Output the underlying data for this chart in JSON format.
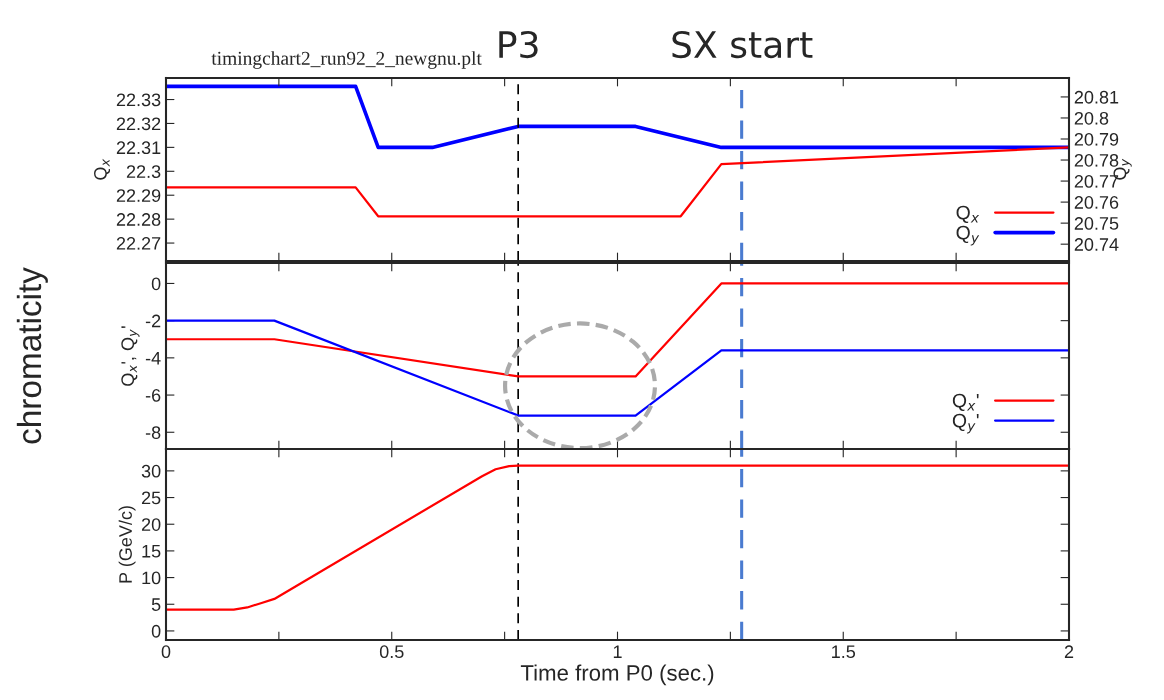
{
  "chart_data": [
    {
      "type": "line",
      "title": "timingchart2_run92_2_newgnu.plt",
      "ylabel": "Q$_{x}$",
      "y2label": "Q$_{y}$",
      "xlim": [
        0,
        2
      ],
      "xticks": [
        0,
        {
          "value": 0.25,
          "label": null
        },
        0.5,
        {
          "value": 0.75,
          "label": null
        },
        1,
        {
          "value": 1.25,
          "label": null
        },
        1.5,
        {
          "value": 1.75,
          "label": null
        },
        2
      ],
      "ylim": [
        22.2625,
        22.339
      ],
      "yticks": [
        22.27,
        22.28,
        22.29,
        22.3,
        22.31,
        22.32,
        22.33
      ],
      "y2lim": [
        20.732,
        20.819
      ],
      "y2ticks": [
        20.74,
        20.75,
        20.76,
        20.77,
        20.78,
        20.79,
        20.8,
        20.81
      ],
      "tick_labels": "y",
      "grid": false,
      "legend": "bottom right",
      "line_style": "solid",
      "marker": "none",
      "series": [
        {
          "name": "Q$_{x}$",
          "color": "#ff0000",
          "x": [
            0,
            0.42,
            0.47,
            1.14,
            1.23,
            2
          ],
          "values": [
            22.2933,
            22.2933,
            22.2812,
            22.2812,
            22.303,
            22.31
          ]
        },
        {
          "name": "Q$_{y}$",
          "color": "#0000ff",
          "axis": "y2",
          "x": [
            0,
            0.42,
            0.47,
            0.59,
            0.78,
            1.04,
            1.23,
            2
          ],
          "values": [
            20.815,
            20.815,
            20.786,
            20.786,
            20.796,
            20.796,
            20.786,
            20.786
          ]
        }
      ],
      "ref_lines": [
        {
          "axis": "x",
          "value": 0.78,
          "label": "P3",
          "color": "#000000",
          "line_style": "dashed"
        },
        {
          "axis": "x",
          "value": 1.275,
          "label": "SX start",
          "color": "#4a7bd0",
          "line_style": "dashed"
        }
      ]
    },
    {
      "type": "line",
      "ylabel": "Q$_{x}$', Q$_{y}$'",
      "annotations": [
        "chromaticity"
      ],
      "xlim": [
        0,
        2
      ],
      "xticks": [
        0,
        {
          "value": 0.25,
          "label": null
        },
        0.5,
        {
          "value": 0.75,
          "label": null
        },
        1,
        {
          "value": 1.25,
          "label": null
        },
        1.5,
        {
          "value": 1.75,
          "label": null
        },
        2
      ],
      "ylim": [
        -8.9,
        1.1
      ],
      "yticks": [
        -8,
        -6,
        -4,
        -2,
        0
      ],
      "tick_labels": "y",
      "grid": false,
      "legend": "bottom right",
      "line_style": "solid",
      "marker": "none",
      "series": [
        {
          "name": "Q$_{x}$'",
          "color": "#ff0000",
          "x": [
            0,
            0.24,
            0.78,
            1.04,
            1.23,
            2
          ],
          "values": [
            -3,
            -3,
            -5,
            -5,
            0,
            0
          ]
        },
        {
          "name": "Q$_{y}$'",
          "color": "#0000ff",
          "x": [
            0,
            0.24,
            0.78,
            1.04,
            1.23,
            2
          ],
          "values": [
            -2,
            -2,
            -7.1,
            -7.1,
            -3.6,
            -3.6
          ]
        }
      ],
      "ref_lines": [
        {
          "axis": "x",
          "value": 0.78,
          "color": "#000000",
          "line_style": "dashed"
        },
        {
          "axis": "x",
          "value": 1.275,
          "color": "#4a7bd0",
          "line_style": "dashed"
        }
      ]
    },
    {
      "type": "line",
      "xlabel": "Time from P0 (sec.)",
      "ylabel": "P (GeV/c)",
      "xlim": [
        0,
        2
      ],
      "xticks": [
        0,
        {
          "value": 0.25,
          "label": null
        },
        0.5,
        {
          "value": 0.75,
          "label": null
        },
        1,
        {
          "value": 1.25,
          "label": null
        },
        1.5,
        {
          "value": 1.75,
          "label": null
        },
        2
      ],
      "ylim": [
        -1.7,
        34.1
      ],
      "yticks": [
        0,
        5,
        10,
        15,
        20,
        25,
        30
      ],
      "grid": false,
      "line_style": "solid",
      "marker": "none",
      "series": [
        {
          "color": "#ff0000",
          "x": [
            0,
            0.15,
            0.18,
            0.21,
            0.24,
            0.7,
            0.73,
            0.76,
            0.78,
            2
          ],
          "values": [
            4,
            4,
            4.4,
            5.2,
            6,
            29,
            30.3,
            30.9,
            31,
            31
          ]
        }
      ],
      "ref_lines": [
        {
          "axis": "x",
          "value": 0.78,
          "color": "#000000",
          "line_style": "dashed"
        },
        {
          "axis": "x",
          "value": 1.275,
          "color": "#4a7bd0",
          "line_style": "dashed"
        }
      ]
    }
  ]
}
